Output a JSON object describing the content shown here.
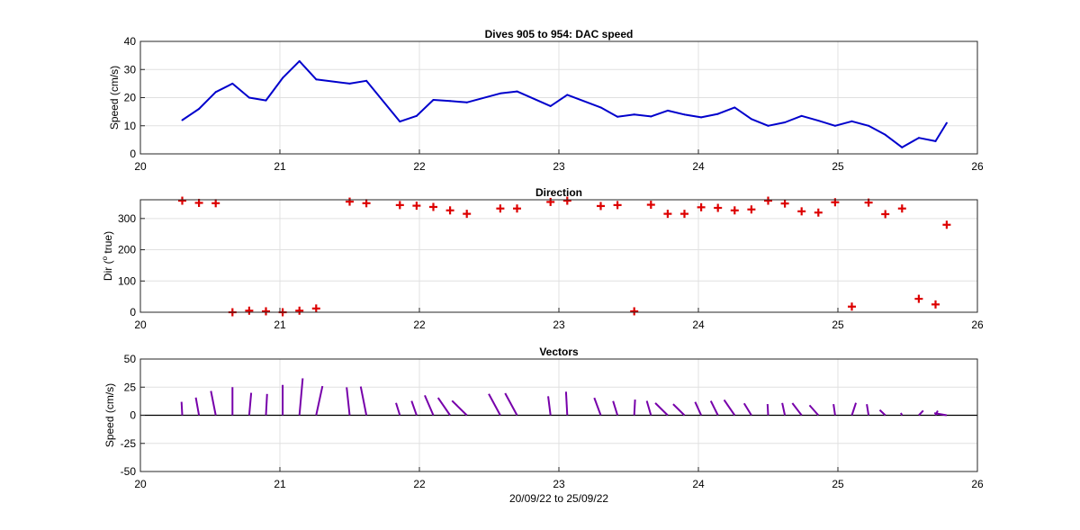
{
  "figure": {
    "background": "#ffffff",
    "xlabel": "20/09/22 to 25/09/22"
  },
  "chart_data": [
    {
      "id": "speed",
      "type": "line",
      "title": "Dives 905 to 954: DAC speed",
      "xlabel": "",
      "ylabel": "Speed (cm/s)",
      "xlim": [
        20,
        26
      ],
      "ylim": [
        0,
        40
      ],
      "xticks": [
        20,
        21,
        22,
        23,
        24,
        25,
        26
      ],
      "yticks": [
        0,
        10,
        20,
        30,
        40
      ],
      "grid": true,
      "color": "#0000cc",
      "x": [
        20.3,
        20.42,
        20.54,
        20.66,
        20.78,
        20.9,
        21.02,
        21.14,
        21.26,
        21.5,
        21.62,
        21.86,
        21.98,
        22.1,
        22.22,
        22.34,
        22.58,
        22.7,
        22.94,
        23.06,
        23.3,
        23.42,
        23.54,
        23.66,
        23.78,
        23.9,
        24.02,
        24.14,
        24.26,
        24.38,
        24.5,
        24.62,
        24.74,
        24.86,
        24.98,
        25.1,
        25.22,
        25.34,
        25.46,
        25.58,
        25.7,
        25.78
      ],
      "y": [
        12,
        16,
        22,
        25,
        20,
        19,
        27,
        33,
        26.5,
        25,
        26,
        11.5,
        13.5,
        19.2,
        18.8,
        18.3,
        21.5,
        22.2,
        17,
        21,
        16.5,
        13.2,
        14,
        13.3,
        15.4,
        14,
        13,
        14.2,
        16.5,
        12.4,
        10,
        11.2,
        13.5,
        11.8,
        10,
        11.6,
        10,
        6.8,
        2.3,
        5.7,
        4.5,
        11
      ]
    },
    {
      "id": "direction",
      "type": "scatter",
      "title": "Direction",
      "xlabel": "",
      "ylabel": "Dir (° true)",
      "ylabel_prefix": "Dir (",
      "ylabel_sup": "o",
      "ylabel_suffix": " true)",
      "xlim": [
        20,
        26
      ],
      "ylim": [
        0,
        360
      ],
      "xticks": [
        20,
        21,
        22,
        23,
        24,
        25,
        26
      ],
      "yticks": [
        0,
        100,
        200,
        300
      ],
      "grid": true,
      "marker": "+",
      "color": "#dd0000",
      "x": [
        20.3,
        20.42,
        20.54,
        20.66,
        20.78,
        20.9,
        21.02,
        21.14,
        21.26,
        21.5,
        21.62,
        21.86,
        21.98,
        22.1,
        22.22,
        22.34,
        22.58,
        22.7,
        22.94,
        23.06,
        23.3,
        23.42,
        23.54,
        23.66,
        23.78,
        23.9,
        24.02,
        24.14,
        24.26,
        24.38,
        24.5,
        24.62,
        24.74,
        24.86,
        24.98,
        25.1,
        25.22,
        25.34,
        25.46,
        25.58,
        25.7,
        25.78
      ],
      "y": [
        357,
        350,
        349,
        0,
        5,
        3,
        0,
        5,
        12,
        354,
        349,
        343,
        341,
        337,
        326,
        315,
        332,
        332,
        353,
        357,
        340,
        343,
        3,
        344,
        315,
        315,
        336,
        334,
        326,
        329,
        357,
        348,
        323,
        319,
        352,
        18,
        351,
        314,
        332,
        43,
        25,
        280
      ]
    },
    {
      "id": "vectors",
      "type": "quiver",
      "title": "Vectors",
      "xlabel": "20/09/22 to 25/09/22",
      "ylabel": "Speed (cm/s)",
      "xlim": [
        20,
        26
      ],
      "ylim": [
        -50,
        50
      ],
      "xticks": [
        20,
        21,
        22,
        23,
        24,
        25,
        26
      ],
      "yticks": [
        -50,
        -25,
        0,
        25,
        50
      ],
      "grid": true,
      "color": "#7700aa",
      "days_per_cms_horizontal": 0.0082,
      "x": [
        20.3,
        20.42,
        20.54,
        20.66,
        20.78,
        20.9,
        21.02,
        21.14,
        21.26,
        21.5,
        21.62,
        21.86,
        21.98,
        22.1,
        22.22,
        22.34,
        22.58,
        22.7,
        22.94,
        23.06,
        23.3,
        23.42,
        23.54,
        23.66,
        23.78,
        23.9,
        24.02,
        24.14,
        24.26,
        24.38,
        24.5,
        24.62,
        24.74,
        24.86,
        24.98,
        25.1,
        25.22,
        25.34,
        25.46,
        25.58,
        25.7,
        25.78
      ],
      "speed": [
        12,
        16,
        22,
        25,
        20,
        19,
        27,
        33,
        26.5,
        25,
        26,
        11.5,
        13.5,
        19.2,
        18.8,
        18.3,
        21.5,
        22.2,
        17,
        21,
        16.5,
        13.2,
        14,
        13.3,
        15.4,
        14,
        13,
        14.2,
        16.5,
        12.4,
        10,
        11.2,
        13.5,
        11.8,
        10,
        11.6,
        10,
        6.8,
        2.3,
        5.7,
        4.5,
        11
      ],
      "direction": [
        357,
        350,
        349,
        0,
        5,
        3,
        0,
        5,
        12,
        354,
        349,
        343,
        341,
        337,
        326,
        315,
        332,
        332,
        353,
        357,
        340,
        343,
        3,
        344,
        315,
        315,
        336,
        334,
        326,
        329,
        357,
        348,
        323,
        319,
        352,
        18,
        351,
        314,
        332,
        43,
        25,
        280
      ]
    }
  ]
}
